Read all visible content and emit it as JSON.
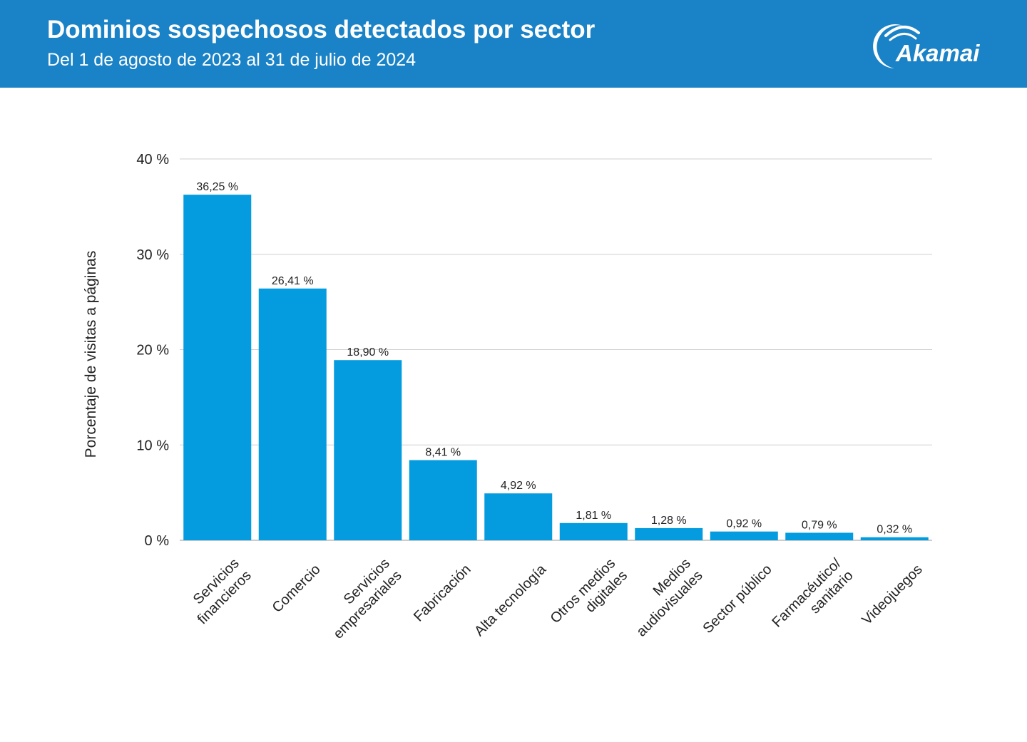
{
  "header": {
    "title": "Dominios sospechosos detectados por sector",
    "subtitle": "Del 1 de agosto de 2023 al 31 de julio de 2024",
    "logo_text": "Akamai",
    "background_color": "#1a82c6"
  },
  "chart_data": {
    "type": "bar",
    "title": "Dominios sospechosos detectados por sector",
    "subtitle": "Del 1 de agosto de 2023 al 31 de julio de 2024",
    "xlabel": "",
    "ylabel": "Porcentaje de visitas a páginas",
    "ylim": [
      0,
      40
    ],
    "yticks": [
      0,
      10,
      20,
      30,
      40
    ],
    "ytick_labels": [
      "0 %",
      "10 %",
      "20 %",
      "30 %",
      "40 %"
    ],
    "grid": true,
    "bar_color": "#049cdf",
    "categories": [
      [
        "Servicios",
        "financieros"
      ],
      [
        "Comercio"
      ],
      [
        "Servicios",
        "empresariales"
      ],
      [
        "Fabricación"
      ],
      [
        "Alta tecnología"
      ],
      [
        "Otros medios",
        "digitales"
      ],
      [
        "Medios",
        "audiovisuales"
      ],
      [
        "Sector público"
      ],
      [
        "Farmacéutico/",
        "sanitario"
      ],
      [
        "Videojuegos"
      ]
    ],
    "values": [
      36.25,
      26.41,
      18.9,
      8.41,
      4.92,
      1.81,
      1.28,
      0.92,
      0.79,
      0.32
    ],
    "data_labels": [
      "36,25 %",
      "26,41 %",
      "18,90 %",
      "8,41 %",
      "4,92 %",
      "1,81 %",
      "1,28 %",
      "0,92 %",
      "0,79 %",
      "0,32 %"
    ]
  }
}
